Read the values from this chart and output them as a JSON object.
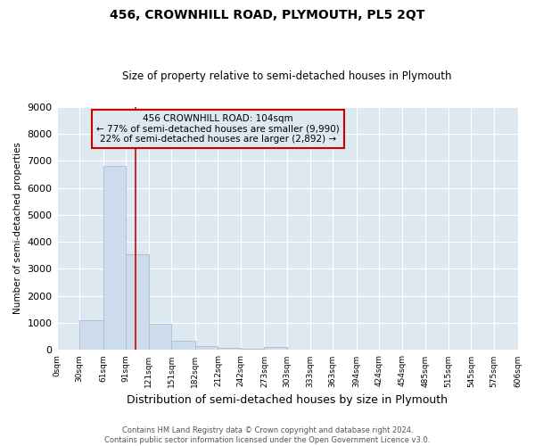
{
  "title": "456, CROWNHILL ROAD, PLYMOUTH, PL5 2QT",
  "subtitle": "Size of property relative to semi-detached houses in Plymouth",
  "xlabel": "Distribution of semi-detached houses by size in Plymouth",
  "ylabel": "Number of semi-detached properties",
  "annotation_line1": "456 CROWNHILL ROAD: 104sqm",
  "annotation_line2": "← 77% of semi-detached houses are smaller (9,990)",
  "annotation_line3": "22% of semi-detached houses are larger (2,892) →",
  "property_size": 104,
  "footer_line1": "Contains HM Land Registry data © Crown copyright and database right 2024.",
  "footer_line2": "Contains public sector information licensed under the Open Government Licence v3.0.",
  "bar_color": "#ccdcec",
  "bar_edge_color": "#aabccc",
  "vline_color": "#cc0000",
  "annotation_box_color": "#cc0000",
  "ylim": [
    0,
    9000
  ],
  "bin_edges": [
    0,
    30,
    61,
    91,
    121,
    151,
    182,
    212,
    242,
    273,
    303,
    333,
    363,
    394,
    424,
    454,
    485,
    515,
    545,
    575,
    606
  ],
  "bin_labels": [
    "0sqm",
    "30sqm",
    "61sqm",
    "91sqm",
    "121sqm",
    "151sqm",
    "182sqm",
    "212sqm",
    "242sqm",
    "273sqm",
    "303sqm",
    "333sqm",
    "363sqm",
    "394sqm",
    "424sqm",
    "454sqm",
    "485sqm",
    "515sqm",
    "545sqm",
    "575sqm",
    "606sqm"
  ],
  "bar_heights": [
    0,
    1100,
    6800,
    3550,
    970,
    330,
    130,
    80,
    50,
    110,
    0,
    0,
    0,
    0,
    0,
    0,
    0,
    0,
    0,
    0
  ],
  "fig_bg_color": "#ffffff",
  "axes_bg_color": "#dde8f0",
  "grid_color": "#ffffff"
}
